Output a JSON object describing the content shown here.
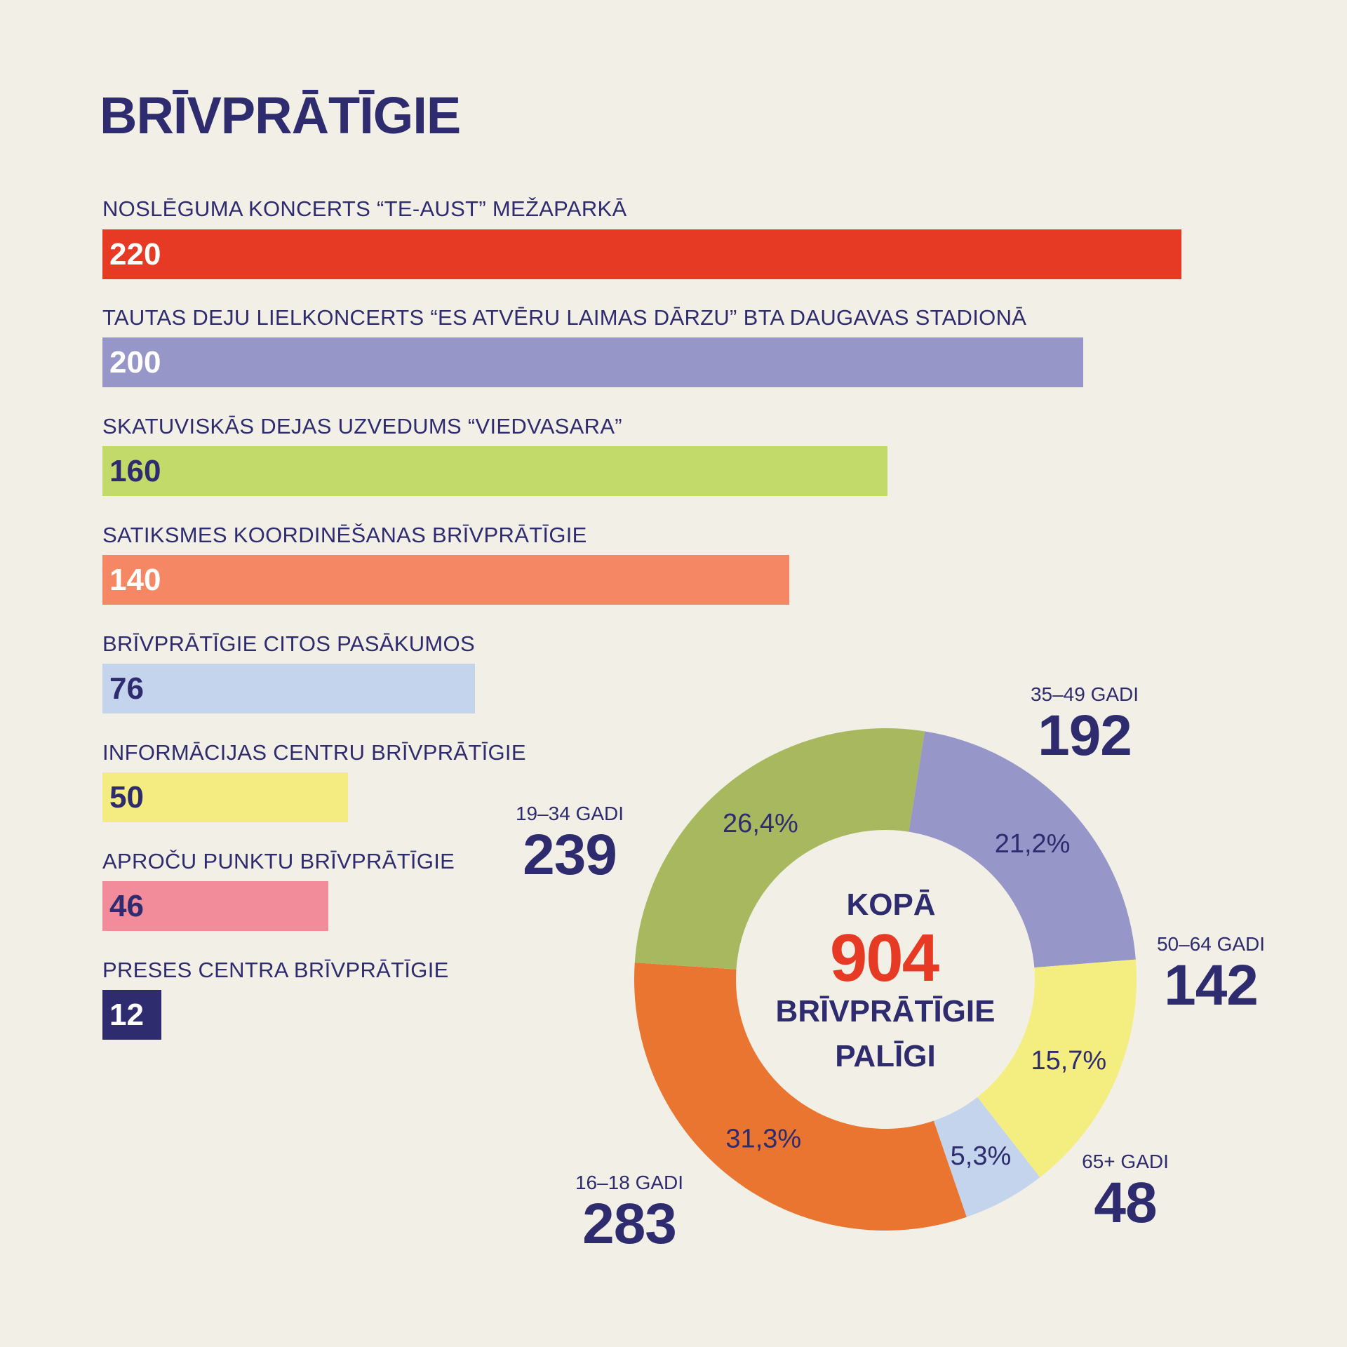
{
  "title": "BRĪVPRĀTĪGIE",
  "chart_data": [
    {
      "type": "bar",
      "orientation": "horizontal",
      "title": "",
      "categories": [
        "NOSLĒGUMA KONCERTS “TE-AUST” MEŽAPARKĀ",
        "TAUTAS DEJU LIELKONCERTS “ES ATVĒRU LAIMAS DĀRZU” BTA DAUGAVAS STADIONĀ",
        "SKATUVISKĀS DEJAS UZVEDUMS “VIEDVASARA”",
        "SATIKSMES KOORDINĒŠANAS BRĪVPRĀTĪGIE",
        "BRĪVPRĀTĪGIE CITOS PASĀKUMOS",
        "INFORMĀCIJAS CENTRU BRĪVPRĀTĪGIE",
        "APROČU PUNKTU BRĪVPRĀTĪGIE",
        "PRESES CENTRA BRĪVPRĀTĪGIE"
      ],
      "values": [
        220,
        200,
        160,
        140,
        76,
        50,
        46,
        12
      ],
      "colors": [
        "#e63a25",
        "#9696c8",
        "#c2da6a",
        "#f58765",
        "#c4d4ec",
        "#f4ec80",
        "#f28b9a",
        "#2e2b6f"
      ],
      "value_text_colors": [
        "#ffffff",
        "#ffffff",
        "#2e2b6f",
        "#ffffff",
        "#2e2b6f",
        "#2e2b6f",
        "#2e2b6f",
        "#ffffff"
      ],
      "xlim": [
        0,
        220
      ]
    },
    {
      "type": "pie",
      "style": "donut",
      "center": {
        "line1": "KOPĀ",
        "total": "904",
        "line3": "BRĪVPRĀTĪGIE",
        "line4": "PALĪGI"
      },
      "slices": [
        {
          "label": "35–49 GADI",
          "value": 192,
          "percent": "21,2%",
          "color": "#9696c8"
        },
        {
          "label": "50–64 GADI",
          "value": 142,
          "percent": "15,7%",
          "color": "#f4ee80"
        },
        {
          "label": "65+ GADI",
          "value": 48,
          "percent": "5,3%",
          "color": "#c4d4ec"
        },
        {
          "label": "16–18 GADI",
          "value": 283,
          "percent": "31,3%",
          "color": "#ea7530"
        },
        {
          "label": "19–34 GADI",
          "value": 239,
          "percent": "26,4%",
          "color": "#a8b85e"
        }
      ]
    }
  ],
  "colors": {
    "ink": "#2e2b6f",
    "accent": "#e63a25",
    "background": "#f2f0e6"
  }
}
